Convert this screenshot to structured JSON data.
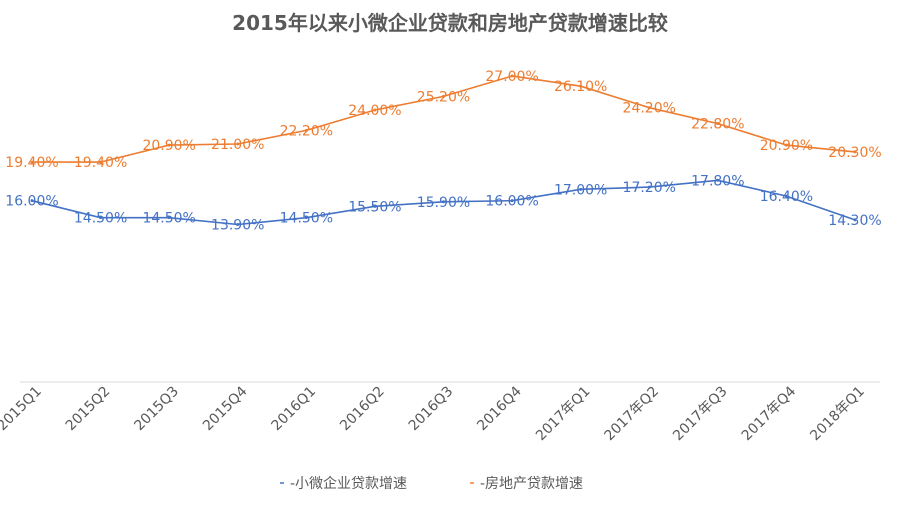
{
  "chart_data": {
    "type": "line",
    "title": "2015年以来小微企业贷款和房地产贷款增速比较",
    "xlabel": "",
    "ylabel": "",
    "categories": [
      "2015Q1",
      "2015Q2",
      "2015Q3",
      "2015Q4",
      "2016Q1",
      "2016Q2",
      "2016Q3",
      "2016Q4",
      "2017年Q1",
      "2017年Q2",
      "2017年Q3",
      "2017年Q4",
      "2018年Q1"
    ],
    "series": [
      {
        "name": "-小微企业贷款增速",
        "color": "#4472C4",
        "values": [
          16.0,
          14.5,
          14.5,
          13.9,
          14.5,
          15.5,
          15.9,
          16.0,
          17.0,
          17.2,
          17.8,
          16.4,
          14.3
        ],
        "labels": [
          "16.00%",
          "14.50%",
          "14.50%",
          "13.90%",
          "14.50%",
          "15.50%",
          "15.90%",
          "16.00%",
          "17.00%",
          "17.20%",
          "17.80%",
          "16.40%",
          "14.30%"
        ]
      },
      {
        "name": "-房地产贷款增速",
        "color": "#ED7D31",
        "values": [
          19.4,
          19.4,
          20.9,
          21.0,
          22.2,
          24.0,
          25.2,
          27.0,
          26.1,
          24.2,
          22.8,
          20.9,
          20.3
        ],
        "labels": [
          "19.40%",
          "19.40%",
          "20.90%",
          "21.00%",
          "22.20%",
          "24.00%",
          "25.20%",
          "27.00%",
          "26.10%",
          "24.20%",
          "22.80%",
          "20.90%",
          "20.30%"
        ]
      }
    ],
    "ylim": [
      0,
      30
    ],
    "grid": false,
    "legend_position": "bottom"
  }
}
